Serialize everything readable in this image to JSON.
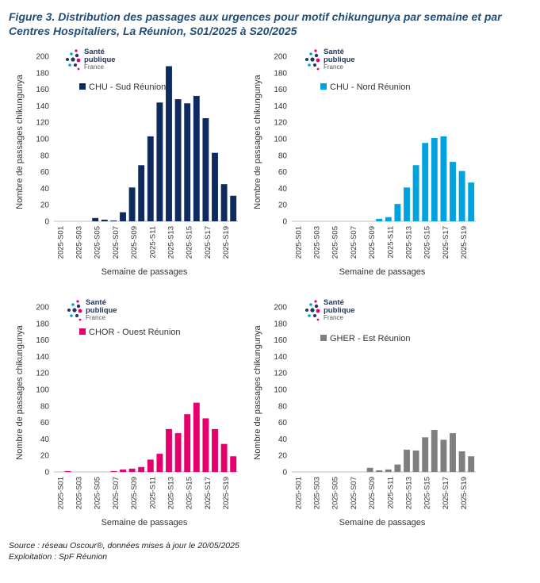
{
  "title": "Figure 3. Distribution des passages aux urgences pour motif chikungunya par semaine et par Centres Hospitaliers, La Réunion, S01/2025 à S20/2025",
  "footer": {
    "source": "Source : réseau Oscour®, données mises à jour le 20/05/2025",
    "exploitation": "Exploitation :  SpF Réunion"
  },
  "logo": {
    "line1": "Santé",
    "line2": "publique",
    "line3": "France"
  },
  "chart_data": [
    {
      "type": "bar",
      "categories": [
        "2025-S01",
        "2025-S02",
        "2025-S03",
        "2025-S04",
        "2025-S05",
        "2025-S06",
        "2025-S07",
        "2025-S08",
        "2025-S09",
        "2025-S10",
        "2025-S11",
        "2025-S12",
        "2025-S13",
        "2025-S14",
        "2025-S15",
        "2025-S16",
        "2025-S17",
        "2025-S18",
        "2025-S19",
        "2025-S20"
      ],
      "tick_labels": [
        "2025-S01",
        "2025-S03",
        "2025-S05",
        "2025-S07",
        "2025-S09",
        "2025-S11",
        "2025-S13",
        "2025-S15",
        "2025-S17",
        "2025-S19"
      ],
      "series": [
        {
          "name": "CHU - Sud Réunion",
          "color": "#0e2a5e",
          "values": [
            0,
            0,
            0,
            0,
            4,
            2,
            1,
            11,
            41,
            68,
            103,
            144,
            188,
            148,
            143,
            152,
            125,
            83,
            45,
            31
          ]
        }
      ],
      "xlabel": "Semaine de passages",
      "ylabel": "Nombre de passages chikungunya",
      "ylim": [
        0,
        200
      ],
      "yticks": [
        "0",
        "20",
        "40",
        "60",
        "80",
        "100",
        "120",
        "140",
        "160",
        "180",
        "200"
      ],
      "grid": false,
      "legend": "top-left"
    },
    {
      "type": "bar",
      "categories": [
        "2025-S01",
        "2025-S02",
        "2025-S03",
        "2025-S04",
        "2025-S05",
        "2025-S06",
        "2025-S07",
        "2025-S08",
        "2025-S09",
        "2025-S10",
        "2025-S11",
        "2025-S12",
        "2025-S13",
        "2025-S14",
        "2025-S15",
        "2025-S16",
        "2025-S17",
        "2025-S18",
        "2025-S19",
        "2025-S20"
      ],
      "tick_labels": [
        "2025-S01",
        "2025-S03",
        "2025-S05",
        "2025-S07",
        "2025-S09",
        "2025-S11",
        "2025-S13",
        "2025-S15",
        "2025-S17",
        "2025-S19"
      ],
      "series": [
        {
          "name": "CHU - Nord Réunion",
          "color": "#00a3e0",
          "values": [
            0,
            0,
            0,
            0,
            0,
            0,
            0,
            0,
            0,
            3,
            5,
            21,
            41,
            68,
            95,
            101,
            103,
            72,
            61,
            47
          ]
        }
      ],
      "xlabel": "Semaine de passages",
      "ylabel": "Nombre de passages chikungunya",
      "ylim": [
        0,
        200
      ],
      "yticks": [
        "0",
        "20",
        "40",
        "60",
        "80",
        "100",
        "120",
        "140",
        "160",
        "180",
        "200"
      ],
      "grid": false,
      "legend": "top-left"
    },
    {
      "type": "bar",
      "categories": [
        "2025-S01",
        "2025-S02",
        "2025-S03",
        "2025-S04",
        "2025-S05",
        "2025-S06",
        "2025-S07",
        "2025-S08",
        "2025-S09",
        "2025-S10",
        "2025-S11",
        "2025-S12",
        "2025-S13",
        "2025-S14",
        "2025-S15",
        "2025-S16",
        "2025-S17",
        "2025-S18",
        "2025-S19",
        "2025-S20"
      ],
      "tick_labels": [
        "2025-S01",
        "2025-S03",
        "2025-S05",
        "2025-S07",
        "2025-S09",
        "2025-S11",
        "2025-S13",
        "2025-S15",
        "2025-S17",
        "2025-S19"
      ],
      "series": [
        {
          "name": "CHOR - Ouest Réunion",
          "color": "#e6006e",
          "values": [
            0,
            1,
            0,
            0,
            0,
            0,
            1,
            3,
            4,
            6,
            15,
            22,
            52,
            47,
            70,
            84,
            65,
            52,
            34,
            19
          ]
        }
      ],
      "xlabel": "Semaine de passages",
      "ylabel": "Nombre de passages chikungunya",
      "ylim": [
        0,
        200
      ],
      "yticks": [
        "0",
        "20",
        "40",
        "60",
        "80",
        "100",
        "120",
        "140",
        "160",
        "180",
        "200"
      ],
      "grid": false,
      "legend": "top-left"
    },
    {
      "type": "bar",
      "categories": [
        "2025-S01",
        "2025-S02",
        "2025-S03",
        "2025-S04",
        "2025-S05",
        "2025-S06",
        "2025-S07",
        "2025-S08",
        "2025-S09",
        "2025-S10",
        "2025-S11",
        "2025-S12",
        "2025-S13",
        "2025-S14",
        "2025-S15",
        "2025-S16",
        "2025-S17",
        "2025-S18",
        "2025-S19",
        "2025-S20"
      ],
      "tick_labels": [
        "2025-S01",
        "2025-S03",
        "2025-S05",
        "2025-S07",
        "2025-S09",
        "2025-S11",
        "2025-S13",
        "2025-S15",
        "2025-S17",
        "2025-S19"
      ],
      "series": [
        {
          "name": "GHER - Est Réunion",
          "color": "#7f7f7f",
          "values": [
            0,
            0,
            0,
            0,
            0,
            0,
            0,
            0,
            5,
            2,
            3,
            9,
            27,
            26,
            42,
            51,
            39,
            47,
            25,
            19
          ]
        }
      ],
      "xlabel": "Semaine de passages",
      "ylabel": "Nombre de passages chikungunya",
      "ylim": [
        0,
        200
      ],
      "yticks": [
        "0",
        "20",
        "40",
        "60",
        "80",
        "100",
        "120",
        "140",
        "160",
        "180",
        "200"
      ],
      "grid": false,
      "legend": "top-left"
    }
  ]
}
